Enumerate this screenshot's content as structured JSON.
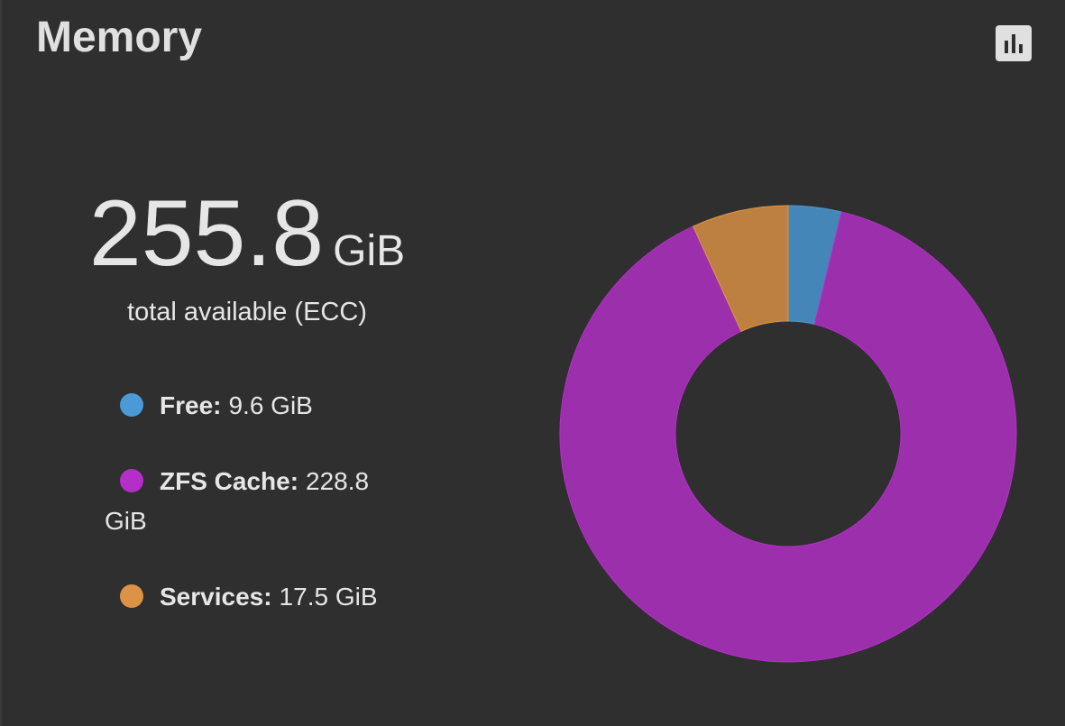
{
  "header": {
    "title": "Memory"
  },
  "total": {
    "value": "255.8",
    "unit": "GiB",
    "caption": "total available (ECC)"
  },
  "chart_data": {
    "type": "pie",
    "donut": true,
    "categories": [
      "Free:",
      "ZFS Cache:",
      "Services:"
    ],
    "values": [
      9.6,
      228.8,
      17.5
    ],
    "value_labels": [
      "9.6 GiB",
      "228.8 GiB",
      "17.5 GiB"
    ],
    "colors": [
      "#4a9ad8",
      "#b42fc8",
      "#dd9345"
    ]
  }
}
